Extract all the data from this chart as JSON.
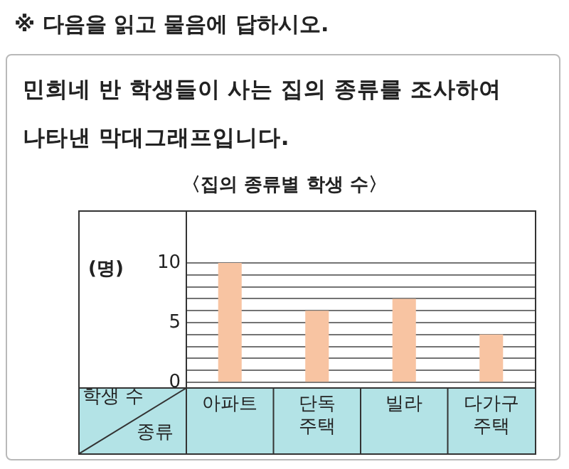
{
  "chart_data": {
    "type": "bar",
    "title": "〈집의 종류별 학생 수〉",
    "xlabel": "종류",
    "ylabel": "학생 수",
    "categories": [
      "아파트",
      "단독\n주택",
      "빌라",
      "다가구\n주택"
    ],
    "values": [
      10,
      6,
      7,
      4
    ],
    "color": "#f8c4a2",
    "ylim": [
      0,
      10
    ],
    "yticks": [
      0,
      {
        "value": 1,
        "label": null
      },
      {
        "value": 2,
        "label": null
      },
      {
        "value": 3,
        "label": null
      },
      {
        "value": 4,
        "label": null
      },
      5,
      {
        "value": 6,
        "label": null
      },
      {
        "value": 7,
        "label": null
      },
      {
        "value": 8,
        "label": null
      },
      {
        "value": 9,
        "label": null
      },
      10
    ],
    "grid": "y",
    "legend": false,
    "annotations": [
      "※ 다음을 읽고 물음에 답하시오.",
      "민희네 반 학생들이 사는 집의 종류를 조사하여 나타낸 막대그래프입니다.",
      "(명)"
    ]
  }
}
